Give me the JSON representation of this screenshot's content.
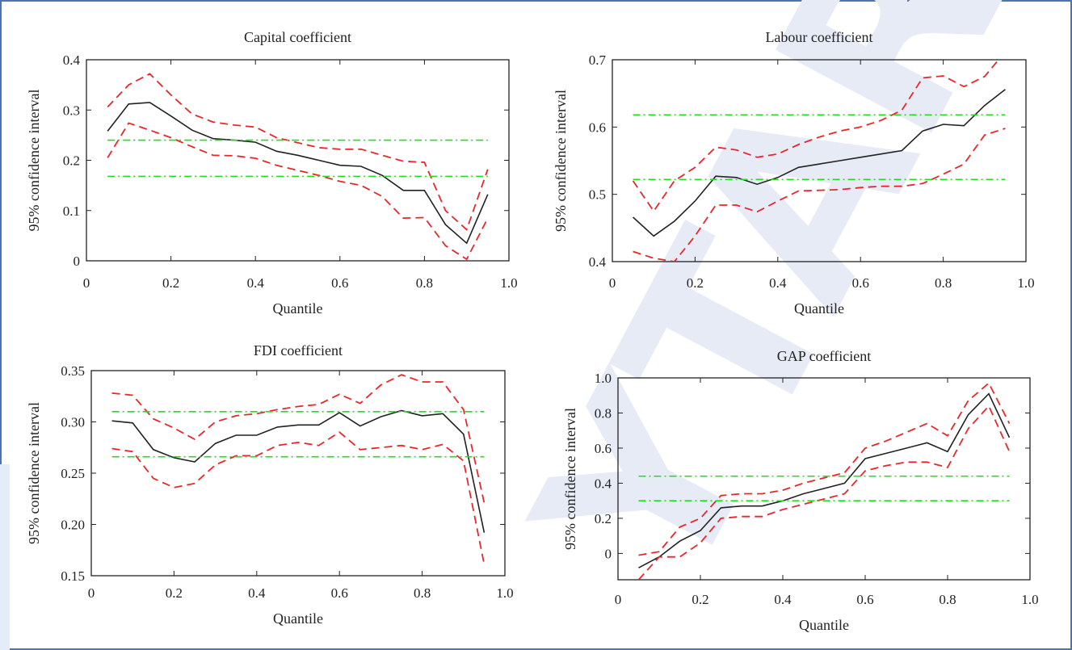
{
  "colors": {
    "frame_border": "#4a74b4",
    "estimate_line": "#222222",
    "confidence_band": "#e8272b",
    "ols_band": "#22dd22",
    "watermark": "#e6ebf6"
  },
  "watermark": {
    "text": "YTAR"
  },
  "chart_data": [
    {
      "type": "line",
      "title": "Capital coefficient",
      "xlabel": "Quantile",
      "ylabel": "95% confidence interval",
      "xlim": [
        0,
        1.0
      ],
      "ylim": [
        0,
        0.4
      ],
      "xticks": [
        "0",
        "0.2",
        "0.4",
        "0.6",
        "0.8",
        "1.0"
      ],
      "yticks": [
        "0",
        "0.1",
        "0.2",
        "0.3",
        "0.4"
      ],
      "x": [
        0.05,
        0.1,
        0.15,
        0.2,
        0.25,
        0.3,
        0.35,
        0.4,
        0.45,
        0.5,
        0.55,
        0.6,
        0.65,
        0.7,
        0.75,
        0.8,
        0.85,
        0.9,
        0.95
      ],
      "series": [
        {
          "role": "estimate",
          "style": "solid",
          "values": [
            0.258,
            0.312,
            0.315,
            0.288,
            0.26,
            0.243,
            0.24,
            0.236,
            0.218,
            0.21,
            0.2,
            0.19,
            0.188,
            0.17,
            0.14,
            0.14,
            0.072,
            0.035,
            0.132
          ]
        },
        {
          "role": "upper",
          "style": "dashed",
          "values": [
            0.306,
            0.35,
            0.372,
            0.33,
            0.292,
            0.276,
            0.27,
            0.266,
            0.245,
            0.235,
            0.225,
            0.222,
            0.222,
            0.21,
            0.198,
            0.196,
            0.1,
            0.062,
            0.182
          ]
        },
        {
          "role": "lower",
          "style": "dashed",
          "values": [
            0.205,
            0.274,
            0.26,
            0.245,
            0.227,
            0.21,
            0.209,
            0.204,
            0.19,
            0.18,
            0.17,
            0.158,
            0.15,
            0.128,
            0.085,
            0.086,
            0.03,
            0.003,
            0.085
          ]
        },
        {
          "role": "band",
          "style": "dash-dot",
          "constant": 0.24
        },
        {
          "role": "band",
          "style": "dash-dot",
          "constant": 0.168
        }
      ]
    },
    {
      "type": "line",
      "title": "Labour coefficient",
      "xlabel": "Quantile",
      "ylabel": "95% confidence interval",
      "xlim": [
        0,
        1.0
      ],
      "ylim": [
        0.4,
        0.7
      ],
      "xticks": [
        "0",
        "0.2",
        "0.4",
        "0.6",
        "0.8",
        "1.0"
      ],
      "yticks": [
        "0.4",
        "0.5",
        "0.6",
        "0.7"
      ],
      "x": [
        0.05,
        0.1,
        0.15,
        0.2,
        0.25,
        0.3,
        0.35,
        0.4,
        0.45,
        0.5,
        0.55,
        0.6,
        0.65,
        0.7,
        0.75,
        0.8,
        0.85,
        0.9,
        0.95
      ],
      "series": [
        {
          "role": "estimate",
          "style": "solid",
          "values": [
            0.466,
            0.438,
            0.46,
            0.49,
            0.527,
            0.525,
            0.515,
            0.525,
            0.54,
            0.545,
            0.55,
            0.555,
            0.56,
            0.565,
            0.594,
            0.604,
            0.602,
            0.632,
            0.656
          ]
        },
        {
          "role": "upper",
          "style": "dashed",
          "values": [
            0.52,
            0.475,
            0.52,
            0.54,
            0.57,
            0.566,
            0.555,
            0.56,
            0.574,
            0.585,
            0.594,
            0.6,
            0.61,
            0.625,
            0.673,
            0.676,
            0.66,
            0.675,
            0.712
          ]
        },
        {
          "role": "lower",
          "style": "dashed",
          "values": [
            0.415,
            0.405,
            0.4,
            0.438,
            0.484,
            0.484,
            0.474,
            0.49,
            0.505,
            0.506,
            0.507,
            0.51,
            0.512,
            0.512,
            0.516,
            0.53,
            0.545,
            0.588,
            0.598
          ]
        },
        {
          "role": "band",
          "style": "dash-dot",
          "constant": 0.618
        },
        {
          "role": "band",
          "style": "dash-dot",
          "constant": 0.522
        }
      ]
    },
    {
      "type": "line",
      "title": "FDI coefficient",
      "xlabel": "Quantile",
      "ylabel": "95% confidence interval",
      "xlim": [
        0,
        1.0
      ],
      "ylim": [
        0.15,
        0.35
      ],
      "xticks": [
        "0",
        "0.2",
        "0.4",
        "0.6",
        "0.8",
        "1.0"
      ],
      "yticks": [
        "0.15",
        "0.20",
        "0.25",
        "0.30",
        "0.35"
      ],
      "x": [
        0.05,
        0.1,
        0.15,
        0.2,
        0.25,
        0.3,
        0.35,
        0.4,
        0.45,
        0.5,
        0.55,
        0.6,
        0.65,
        0.7,
        0.75,
        0.8,
        0.85,
        0.9,
        0.95
      ],
      "series": [
        {
          "role": "estimate",
          "style": "solid",
          "values": [
            0.301,
            0.299,
            0.273,
            0.265,
            0.261,
            0.279,
            0.287,
            0.287,
            0.295,
            0.297,
            0.297,
            0.309,
            0.296,
            0.305,
            0.311,
            0.306,
            0.308,
            0.288,
            0.192
          ]
        },
        {
          "role": "upper",
          "style": "dashed",
          "values": [
            0.328,
            0.326,
            0.303,
            0.294,
            0.283,
            0.3,
            0.306,
            0.308,
            0.312,
            0.315,
            0.317,
            0.327,
            0.318,
            0.336,
            0.346,
            0.339,
            0.339,
            0.312,
            0.221
          ]
        },
        {
          "role": "lower",
          "style": "dashed",
          "values": [
            0.274,
            0.271,
            0.245,
            0.236,
            0.24,
            0.258,
            0.267,
            0.267,
            0.277,
            0.28,
            0.277,
            0.29,
            0.273,
            0.275,
            0.277,
            0.273,
            0.278,
            0.262,
            0.161
          ]
        },
        {
          "role": "band",
          "style": "dash-dot",
          "constant": 0.31
        },
        {
          "role": "band",
          "style": "dash-dot",
          "constant": 0.266
        }
      ]
    },
    {
      "type": "line",
      "title": "GAP coefficient",
      "xlabel": "Quantile",
      "ylabel": "95% confidence interval",
      "xlim": [
        0,
        1.0
      ],
      "ylim": [
        -0.15,
        1.0
      ],
      "xticks": [
        "0",
        "0.2",
        "0.4",
        "0.6",
        "0.8",
        "1.0"
      ],
      "yticks": [
        "0",
        "0.2",
        "0.4",
        "0.6",
        "0.8",
        "1.0"
      ],
      "ytick_values": [
        0,
        0.2,
        0.4,
        0.6,
        0.8,
        1.0
      ],
      "x": [
        0.05,
        0.1,
        0.15,
        0.2,
        0.25,
        0.3,
        0.35,
        0.4,
        0.45,
        0.5,
        0.55,
        0.6,
        0.65,
        0.7,
        0.75,
        0.8,
        0.85,
        0.9,
        0.95
      ],
      "series": [
        {
          "role": "estimate",
          "style": "solid",
          "values": [
            -0.082,
            -0.02,
            0.07,
            0.13,
            0.26,
            0.27,
            0.27,
            0.3,
            0.34,
            0.37,
            0.4,
            0.54,
            0.57,
            0.6,
            0.63,
            0.58,
            0.79,
            0.91,
            0.66
          ]
        },
        {
          "role": "upper",
          "style": "dashed",
          "values": [
            -0.01,
            0.01,
            0.15,
            0.2,
            0.33,
            0.34,
            0.34,
            0.36,
            0.4,
            0.43,
            0.46,
            0.6,
            0.64,
            0.69,
            0.74,
            0.67,
            0.87,
            0.97,
            0.74
          ]
        },
        {
          "role": "lower",
          "style": "dashed",
          "values": [
            -0.15,
            -0.02,
            -0.02,
            0.06,
            0.2,
            0.21,
            0.21,
            0.25,
            0.28,
            0.31,
            0.34,
            0.47,
            0.5,
            0.52,
            0.52,
            0.49,
            0.71,
            0.84,
            0.58
          ]
        },
        {
          "role": "band",
          "style": "dash-dot",
          "constant": 0.44
        },
        {
          "role": "band",
          "style": "dash-dot",
          "constant": 0.3
        }
      ]
    }
  ]
}
